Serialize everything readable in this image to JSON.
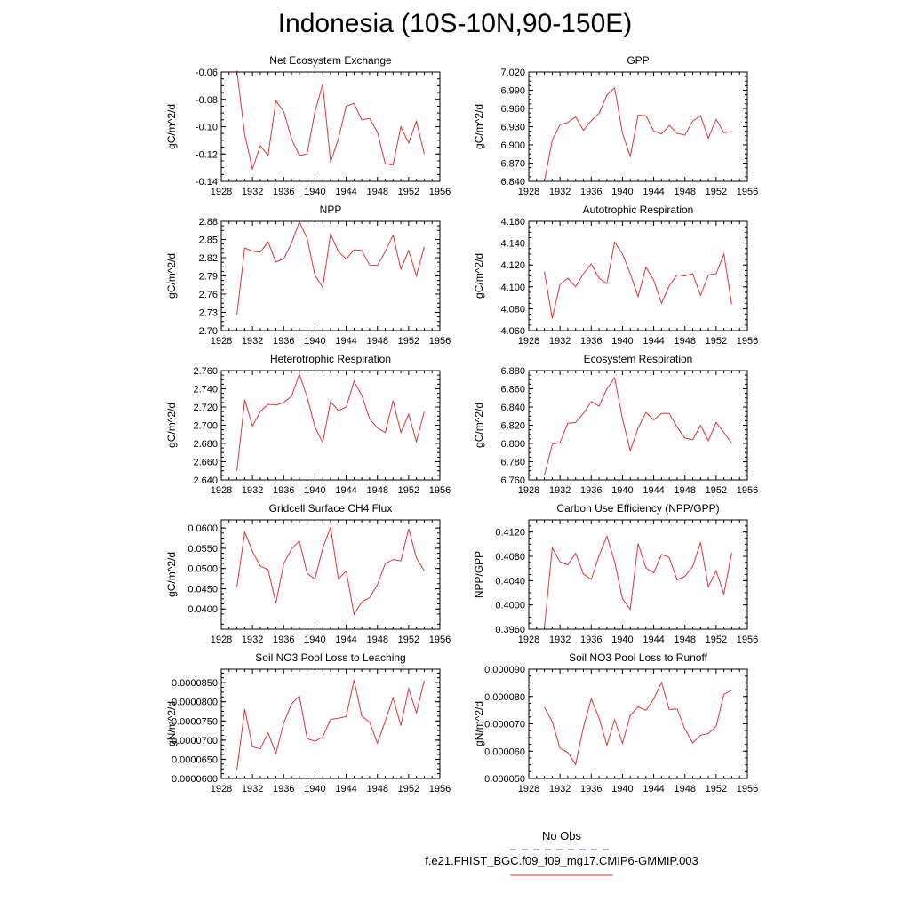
{
  "page_title": "Indonesia (10S-10N,90-150E)",
  "legend": {
    "obs_label": "No Obs",
    "obs_color": "#5555cc",
    "model_label": "f.e21.FHIST_BGC.f09_f09_mg17.CMIP6-GMMIP.003",
    "model_color": "#e33333"
  },
  "chart_data": [
    {
      "type": "line",
      "title": "Net Ecosystem Exchange",
      "ylabel": "gC/m^2/d",
      "x": [
        1930,
        1931,
        1932,
        1933,
        1934,
        1935,
        1936,
        1937,
        1938,
        1939,
        1940,
        1941,
        1942,
        1943,
        1944,
        1945,
        1946,
        1947,
        1948,
        1949,
        1950,
        1951,
        1952,
        1953,
        1954
      ],
      "values": [
        -0.059,
        -0.106,
        -0.131,
        -0.114,
        -0.121,
        -0.081,
        -0.089,
        -0.109,
        -0.121,
        -0.12,
        -0.089,
        -0.069,
        -0.126,
        -0.109,
        -0.085,
        -0.083,
        -0.095,
        -0.094,
        -0.104,
        -0.127,
        -0.128,
        -0.1,
        -0.112,
        -0.096,
        -0.12
      ],
      "xlim": [
        1928,
        1956
      ],
      "ylim": [
        -0.14,
        -0.06
      ],
      "xticks": [
        "1928",
        "1932",
        "1936",
        "1940",
        "1944",
        "1948",
        "1952",
        "1956"
      ],
      "yticks": [
        "-0.14",
        "-0.12",
        "-0.10",
        "-0.08",
        "-0.06"
      ]
    },
    {
      "type": "line",
      "title": "GPP",
      "ylabel": "gC/m^2/d",
      "x": [
        1930,
        1931,
        1932,
        1933,
        1934,
        1935,
        1936,
        1937,
        1938,
        1939,
        1940,
        1941,
        1942,
        1943,
        1944,
        1945,
        1946,
        1947,
        1948,
        1949,
        1950,
        1951,
        1952,
        1953,
        1954
      ],
      "values": [
        6.84,
        6.908,
        6.933,
        6.937,
        6.946,
        6.924,
        6.94,
        6.952,
        6.982,
        6.994,
        6.919,
        6.881,
        6.949,
        6.948,
        6.923,
        6.918,
        6.932,
        6.919,
        6.916,
        6.939,
        6.948,
        6.911,
        6.942,
        6.92,
        6.922
      ],
      "xlim": [
        1928,
        1956
      ],
      "ylim": [
        6.84,
        7.02
      ],
      "xticks": [
        "1928",
        "1932",
        "1936",
        "1940",
        "1944",
        "1948",
        "1952",
        "1956"
      ],
      "yticks": [
        "6.840",
        "6.870",
        "6.900",
        "6.930",
        "6.960",
        "6.990",
        "7.020"
      ]
    },
    {
      "type": "line",
      "title": "NPP",
      "ylabel": "gC/m^2/d",
      "x": [
        1930,
        1931,
        1932,
        1933,
        1934,
        1935,
        1936,
        1937,
        1938,
        1939,
        1940,
        1941,
        1942,
        1943,
        1944,
        1945,
        1946,
        1947,
        1948,
        1949,
        1950,
        1951,
        1952,
        1953,
        1954
      ],
      "values": [
        2.726,
        2.836,
        2.831,
        2.829,
        2.846,
        2.813,
        2.818,
        2.844,
        2.879,
        2.852,
        2.791,
        2.771,
        2.859,
        2.83,
        2.818,
        2.833,
        2.832,
        2.808,
        2.807,
        2.83,
        2.857,
        2.801,
        2.832,
        2.79,
        2.838
      ],
      "xlim": [
        1928,
        1956
      ],
      "ylim": [
        2.7,
        2.88
      ],
      "xticks": [
        "1928",
        "1932",
        "1936",
        "1940",
        "1944",
        "1948",
        "1952",
        "1956"
      ],
      "yticks": [
        "2.70",
        "2.73",
        "2.76",
        "2.79",
        "2.82",
        "2.85",
        "2.88"
      ]
    },
    {
      "type": "line",
      "title": "Autotrophic Respiration",
      "ylabel": "gC/m^2/d",
      "x": [
        1930,
        1931,
        1932,
        1933,
        1934,
        1935,
        1936,
        1937,
        1938,
        1939,
        1940,
        1941,
        1942,
        1943,
        1944,
        1945,
        1946,
        1947,
        1948,
        1949,
        1950,
        1951,
        1952,
        1953,
        1954
      ],
      "values": [
        4.114,
        4.071,
        4.102,
        4.108,
        4.1,
        4.112,
        4.121,
        4.108,
        4.103,
        4.141,
        4.13,
        4.112,
        4.091,
        4.118,
        4.106,
        4.085,
        4.101,
        4.111,
        4.11,
        4.112,
        4.092,
        4.111,
        4.112,
        4.13,
        4.084
      ],
      "xlim": [
        1928,
        1956
      ],
      "ylim": [
        4.06,
        4.16
      ],
      "xticks": [
        "1928",
        "1932",
        "1936",
        "1940",
        "1944",
        "1948",
        "1952",
        "1956"
      ],
      "yticks": [
        "4.060",
        "4.080",
        "4.100",
        "4.120",
        "4.140",
        "4.160"
      ]
    },
    {
      "type": "line",
      "title": "Heterotrophic Respiration",
      "ylabel": "gC/m^2/d",
      "x": [
        1930,
        1931,
        1932,
        1933,
        1934,
        1935,
        1936,
        1937,
        1938,
        1939,
        1940,
        1941,
        1942,
        1943,
        1944,
        1945,
        1946,
        1947,
        1948,
        1949,
        1950,
        1951,
        1952,
        1953,
        1954
      ],
      "values": [
        2.65,
        2.728,
        2.699,
        2.715,
        2.723,
        2.722,
        2.725,
        2.732,
        2.756,
        2.731,
        2.698,
        2.681,
        2.726,
        2.716,
        2.72,
        2.748,
        2.733,
        2.707,
        2.697,
        2.692,
        2.727,
        2.692,
        2.712,
        2.682,
        2.715
      ],
      "xlim": [
        1928,
        1956
      ],
      "ylim": [
        2.64,
        2.76
      ],
      "xticks": [
        "1928",
        "1932",
        "1936",
        "1940",
        "1944",
        "1948",
        "1952",
        "1956"
      ],
      "yticks": [
        "2.640",
        "2.660",
        "2.680",
        "2.700",
        "2.720",
        "2.740",
        "2.760"
      ]
    },
    {
      "type": "line",
      "title": "Ecosystem Respiration",
      "ylabel": "gC/m^2/d",
      "x": [
        1930,
        1931,
        1932,
        1933,
        1934,
        1935,
        1936,
        1937,
        1938,
        1939,
        1940,
        1941,
        1942,
        1943,
        1944,
        1945,
        1946,
        1947,
        1948,
        1949,
        1950,
        1951,
        1952,
        1953,
        1954
      ],
      "values": [
        6.765,
        6.799,
        6.801,
        6.822,
        6.823,
        6.833,
        6.846,
        6.841,
        6.86,
        6.872,
        6.827,
        6.792,
        6.817,
        6.834,
        6.826,
        6.833,
        6.833,
        6.818,
        6.806,
        6.804,
        6.82,
        6.803,
        6.823,
        6.812,
        6.8
      ],
      "xlim": [
        1928,
        1956
      ],
      "ylim": [
        6.76,
        6.88
      ],
      "xticks": [
        "1928",
        "1932",
        "1936",
        "1940",
        "1944",
        "1948",
        "1952",
        "1956"
      ],
      "yticks": [
        "6.760",
        "6.780",
        "6.800",
        "6.820",
        "6.840",
        "6.860",
        "6.880"
      ]
    },
    {
      "type": "line",
      "title": "Gridcell Surface CH4 Flux",
      "ylabel": "gC/m^2/d",
      "x": [
        1930,
        1931,
        1932,
        1933,
        1934,
        1935,
        1936,
        1937,
        1938,
        1939,
        1940,
        1941,
        1942,
        1943,
        1944,
        1945,
        1946,
        1947,
        1948,
        1949,
        1950,
        1951,
        1952,
        1953,
        1954
      ],
      "values": [
        0.0454,
        0.059,
        0.0542,
        0.0506,
        0.0497,
        0.0414,
        0.0512,
        0.0548,
        0.0568,
        0.0488,
        0.0474,
        0.055,
        0.0602,
        0.0474,
        0.0494,
        0.0387,
        0.0417,
        0.0428,
        0.046,
        0.0512,
        0.0522,
        0.0519,
        0.0598,
        0.0526,
        0.0494
      ],
      "xlim": [
        1928,
        1956
      ],
      "ylim": [
        0.035,
        0.062
      ],
      "xticks": [
        "1928",
        "1932",
        "1936",
        "1940",
        "1944",
        "1948",
        "1952",
        "1956"
      ],
      "yticks": [
        "0.0400",
        "0.0450",
        "0.0500",
        "0.0550",
        "0.0600"
      ]
    },
    {
      "type": "line",
      "title": "Carbon Use Efficiency (NPP/GPP)",
      "ylabel": "NPP/GPP",
      "x": [
        1930,
        1931,
        1932,
        1933,
        1934,
        1935,
        1936,
        1937,
        1938,
        1939,
        1940,
        1941,
        1942,
        1943,
        1944,
        1945,
        1946,
        1947,
        1948,
        1949,
        1950,
        1951,
        1952,
        1953,
        1954
      ],
      "values": [
        0.3963,
        0.4094,
        0.4071,
        0.4066,
        0.4085,
        0.4051,
        0.4042,
        0.4081,
        0.4113,
        0.4071,
        0.401,
        0.3993,
        0.4101,
        0.4061,
        0.4053,
        0.4083,
        0.4078,
        0.4041,
        0.4047,
        0.4063,
        0.4103,
        0.403,
        0.4056,
        0.4018,
        0.4086
      ],
      "xlim": [
        1928,
        1956
      ],
      "ylim": [
        0.396,
        0.414
      ],
      "xticks": [
        "1928",
        "1932",
        "1936",
        "1940",
        "1944",
        "1948",
        "1952",
        "1956"
      ],
      "yticks": [
        "0.3960",
        "0.4000",
        "0.4040",
        "0.4080",
        "0.4120"
      ]
    },
    {
      "type": "line",
      "title": "Soil NO3 Pool Loss to Leaching",
      "ylabel": "gN/m^2/d",
      "x": [
        1930,
        1931,
        1932,
        1933,
        1934,
        1935,
        1936,
        1937,
        1938,
        1939,
        1940,
        1941,
        1942,
        1943,
        1944,
        1945,
        1946,
        1947,
        1948,
        1949,
        1950,
        1951,
        1952,
        1953,
        1954
      ],
      "values": [
        6.22e-05,
        7.81e-05,
        6.83e-05,
        6.77e-05,
        7.19e-05,
        6.65e-05,
        7.45e-05,
        7.94e-05,
        8.15e-05,
        7.04e-05,
        6.97e-05,
        7.08e-05,
        7.54e-05,
        7.57e-05,
        7.61e-05,
        8.57e-05,
        7.63e-05,
        7.47e-05,
        6.92e-05,
        7.49e-05,
        8.1e-05,
        7.38e-05,
        8.34e-05,
        7.71e-05,
        8.55e-05
      ],
      "xlim": [
        1928,
        1956
      ],
      "ylim": [
        6e-05,
        8.85e-05
      ],
      "xticks": [
        "1928",
        "1932",
        "1936",
        "1940",
        "1944",
        "1948",
        "1952",
        "1956"
      ],
      "yticks": [
        "0.0000600",
        "0.0000650",
        "0.0000700",
        "0.0000750",
        "0.0000800",
        "0.0000850"
      ]
    },
    {
      "type": "line",
      "title": "Soil NO3 Pool Loss to Runoff",
      "ylabel": "gN/m^2/d",
      "x": [
        1930,
        1931,
        1932,
        1933,
        1934,
        1935,
        1936,
        1937,
        1938,
        1939,
        1940,
        1941,
        1942,
        1943,
        1944,
        1945,
        1946,
        1947,
        1948,
        1949,
        1950,
        1951,
        1952,
        1953,
        1954
      ],
      "values": [
        7.6e-05,
        7.08e-05,
        6.11e-05,
        5.95e-05,
        5.51e-05,
        6.88e-05,
        7.91e-05,
        7.21e-05,
        6.22e-05,
        7.15e-05,
        6.28e-05,
        7.3e-05,
        7.62e-05,
        7.49e-05,
        7.91e-05,
        8.52e-05,
        7.52e-05,
        7.55e-05,
        6.81e-05,
        6.3e-05,
        6.58e-05,
        6.65e-05,
        6.91e-05,
        8.08e-05,
        8.23e-05
      ],
      "xlim": [
        1928,
        1956
      ],
      "ylim": [
        5e-05,
        9e-05
      ],
      "xticks": [
        "1928",
        "1932",
        "1936",
        "1940",
        "1944",
        "1948",
        "1952",
        "1956"
      ],
      "yticks": [
        "0.000050",
        "0.000060",
        "0.000070",
        "0.000080",
        "0.000090"
      ]
    }
  ]
}
